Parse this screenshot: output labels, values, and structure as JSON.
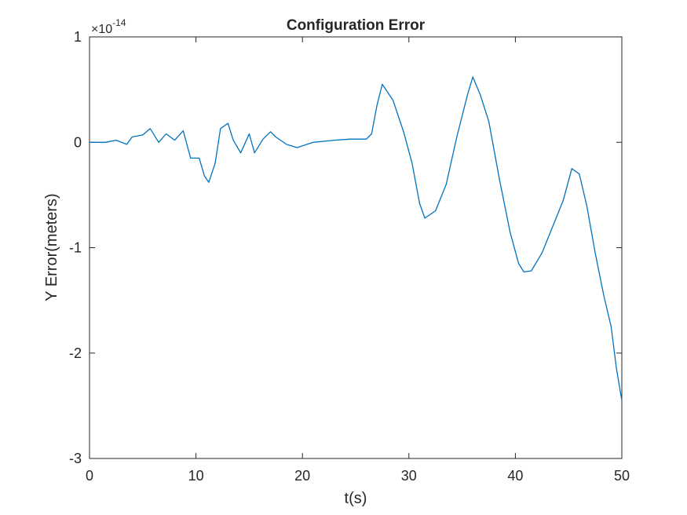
{
  "chart_data": {
    "type": "line",
    "title": "Configuration Error",
    "xlabel": "t(s)",
    "ylabel": "Y Error(meters)",
    "y_exponent_label": "×10",
    "y_exponent_power": "-14",
    "y_scale_factor": 1e-14,
    "xlim": [
      0,
      50
    ],
    "ylim": [
      -3,
      1
    ],
    "x_ticks": [
      0,
      10,
      20,
      30,
      40,
      50
    ],
    "x_tick_labels": [
      "0",
      "10",
      "20",
      "30",
      "40",
      "50"
    ],
    "y_ticks": [
      -3,
      -2,
      -1,
      0,
      1
    ],
    "y_tick_labels": [
      "-3",
      "-2",
      "-1",
      "0",
      "1"
    ],
    "grid": false,
    "line_color": "#0072BD",
    "series": [
      {
        "x": [
          0,
          1.5,
          2.5,
          3.5,
          4,
          5,
          5.7,
          6.5,
          7.2,
          8,
          8.8,
          9.5,
          10.3,
          10.8,
          11.2,
          11.8,
          12.3,
          13,
          13.5,
          14.2,
          15,
          15.5,
          16.3,
          17,
          17.5,
          18.5,
          19.5,
          21,
          23,
          24.5,
          26,
          26.5,
          27,
          27.5,
          28.5,
          29.5,
          30.3,
          31,
          31.5,
          32.5,
          33.5,
          34.5,
          35.5,
          36,
          36.7,
          37.5,
          38.5,
          39.5,
          40.3,
          40.8,
          41.5,
          42.5,
          43.5,
          44.5,
          45.3,
          46,
          46.7,
          47.5,
          48.3,
          49,
          49.5,
          50
        ],
        "y": [
          0,
          0,
          0.02,
          -0.02,
          0.05,
          0.07,
          0.13,
          0,
          0.08,
          0.02,
          0.11,
          -0.15,
          -0.15,
          -0.32,
          -0.38,
          -0.2,
          0.13,
          0.18,
          0.02,
          -0.1,
          0.08,
          -0.1,
          0.03,
          0.1,
          0.05,
          -0.02,
          -0.05,
          0,
          0.02,
          0.03,
          0.03,
          0.08,
          0.35,
          0.55,
          0.4,
          0.1,
          -0.2,
          -0.58,
          -0.72,
          -0.65,
          -0.4,
          0.05,
          0.45,
          0.62,
          0.45,
          0.2,
          -0.35,
          -0.85,
          -1.15,
          -1.23,
          -1.22,
          -1.05,
          -0.8,
          -0.55,
          -0.25,
          -0.3,
          -0.6,
          -1.05,
          -1.45,
          -1.75,
          -2.15,
          -2.45
        ]
      }
    ]
  }
}
